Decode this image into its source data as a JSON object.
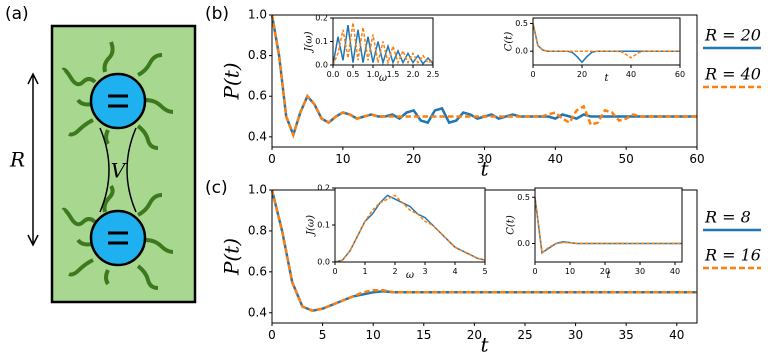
{
  "panel_a": {
    "label": "(a)",
    "distance_label": "R",
    "coupling_label": "V"
  },
  "chart_data": [
    {
      "type": "line",
      "panel_label": "(b)",
      "xlabel": "t",
      "ylabel": "P(t)",
      "x": [
        0,
        1,
        2,
        3,
        4,
        5,
        6,
        7,
        8,
        9,
        10,
        11,
        12,
        13,
        14,
        15,
        16,
        17,
        18,
        19,
        20,
        21,
        22,
        23,
        24,
        25,
        26,
        27,
        28,
        29,
        30,
        31,
        32,
        33,
        34,
        35,
        36,
        37,
        38,
        39,
        40,
        41,
        42,
        43,
        44,
        45,
        46,
        47,
        48,
        49,
        50,
        51,
        52,
        53,
        54,
        55,
        56,
        57,
        58,
        59,
        60
      ],
      "series": [
        {
          "name": "R = 20",
          "color": "#1f77b4",
          "dashed": false,
          "values": [
            1.0,
            0.8,
            0.5,
            0.41,
            0.52,
            0.6,
            0.56,
            0.49,
            0.47,
            0.5,
            0.52,
            0.51,
            0.49,
            0.5,
            0.51,
            0.5,
            0.5,
            0.51,
            0.49,
            0.52,
            0.53,
            0.48,
            0.47,
            0.53,
            0.54,
            0.47,
            0.48,
            0.52,
            0.51,
            0.49,
            0.5,
            0.51,
            0.49,
            0.5,
            0.51,
            0.5,
            0.5,
            0.5,
            0.5,
            0.5,
            0.49,
            0.51,
            0.5,
            0.49,
            0.51,
            0.5,
            0.5,
            0.5,
            0.5,
            0.5,
            0.5,
            0.5,
            0.5,
            0.5,
            0.5,
            0.5,
            0.5,
            0.5,
            0.5,
            0.5,
            0.5
          ]
        },
        {
          "name": "R = 40",
          "color": "#ff7f0e",
          "dashed": true,
          "values": [
            1.0,
            0.8,
            0.5,
            0.41,
            0.52,
            0.6,
            0.56,
            0.49,
            0.47,
            0.5,
            0.52,
            0.51,
            0.49,
            0.5,
            0.51,
            0.5,
            0.5,
            0.5,
            0.5,
            0.5,
            0.5,
            0.5,
            0.5,
            0.5,
            0.5,
            0.5,
            0.5,
            0.5,
            0.5,
            0.5,
            0.5,
            0.5,
            0.5,
            0.5,
            0.5,
            0.5,
            0.5,
            0.5,
            0.5,
            0.51,
            0.52,
            0.49,
            0.47,
            0.53,
            0.55,
            0.46,
            0.47,
            0.53,
            0.52,
            0.48,
            0.49,
            0.51,
            0.5,
            0.5,
            0.5,
            0.5,
            0.5,
            0.5,
            0.5,
            0.5,
            0.5
          ]
        }
      ],
      "xlim": [
        0,
        60
      ],
      "ylim": [
        0.35,
        1.0
      ],
      "xticks": [
        0,
        10,
        20,
        30,
        40,
        50,
        60
      ],
      "yticks": [
        {
          "value": 1.0,
          "label": "1.0"
        },
        0.8,
        0.6,
        0.4
      ],
      "legend": "outside-right"
    },
    {
      "type": "line",
      "xlabel": "ω",
      "ylabel": "J(ω)",
      "x": [
        0,
        0.125,
        0.25,
        0.375,
        0.5,
        0.625,
        0.75,
        0.875,
        1.0,
        1.125,
        1.25,
        1.375,
        1.5,
        1.625,
        1.75,
        1.875,
        2.0,
        2.125,
        2.25,
        2.375,
        2.5
      ],
      "series": [
        {
          "color": "#1f77b4",
          "dashed": false,
          "values": [
            0,
            0.12,
            0.02,
            0.17,
            0.01,
            0.15,
            0.01,
            0.12,
            0.01,
            0.1,
            0.01,
            0.08,
            0.01,
            0.06,
            0.01,
            0.05,
            0.01,
            0.04,
            0.005,
            0.03,
            0.005
          ]
        },
        {
          "color": "#ff7f0e",
          "dashed": true,
          "values": [
            0,
            0.05,
            0.15,
            0.03,
            0.18,
            0.02,
            0.16,
            0.02,
            0.13,
            0.01,
            0.1,
            0.01,
            0.08,
            0.01,
            0.06,
            0.01,
            0.05,
            0.01,
            0.04,
            0.01,
            0.02
          ]
        }
      ],
      "xlim": [
        0,
        2.5
      ],
      "ylim": [
        0,
        0.2
      ],
      "xticks": [
        {
          "value": 0.0,
          "label": "0.0"
        },
        0.5,
        {
          "value": 1.0,
          "label": "1.0"
        },
        1.5,
        {
          "value": 2.0,
          "label": "2.0"
        },
        2.5
      ],
      "yticks": [
        {
          "value": 0.0,
          "label": "0.0"
        },
        0.1,
        0.2
      ]
    },
    {
      "type": "line",
      "xlabel": "t",
      "ylabel": "C(t)",
      "x": [
        0,
        2,
        4,
        6,
        8,
        10,
        12,
        14,
        16,
        18,
        20,
        22,
        24,
        26,
        28,
        30,
        32,
        34,
        36,
        38,
        40,
        42,
        44,
        46,
        48,
        50,
        52,
        54,
        56,
        58,
        60
      ],
      "series": [
        {
          "color": "#1f77b4",
          "dashed": false,
          "values": [
            0.5,
            0.1,
            0.02,
            0,
            0,
            0,
            0,
            0,
            -0.02,
            -0.1,
            -0.2,
            -0.1,
            -0.02,
            0,
            0,
            0,
            0,
            0,
            0,
            0,
            0,
            0,
            0,
            0,
            0,
            0,
            0,
            0,
            0,
            0,
            0
          ]
        },
        {
          "color": "#ff7f0e",
          "dashed": true,
          "values": [
            0.5,
            0.1,
            0.02,
            0,
            0,
            0,
            0,
            0,
            0,
            0,
            0,
            0,
            0,
            0,
            0,
            0,
            0,
            0,
            -0.01,
            -0.06,
            -0.12,
            -0.06,
            -0.01,
            0,
            0,
            0,
            0,
            0,
            0,
            0,
            0
          ]
        }
      ],
      "xlim": [
        0,
        60
      ],
      "ylim": [
        -0.25,
        0.6
      ],
      "xticks": [
        0,
        20,
        40,
        60
      ],
      "yticks": [
        {
          "value": 0.0,
          "label": "0.0"
        },
        0.5
      ]
    },
    {
      "type": "line",
      "panel_label": "(c)",
      "xlabel": "t",
      "ylabel": "P(t)",
      "x": [
        0,
        1,
        2,
        3,
        4,
        5,
        6,
        7,
        8,
        9,
        10,
        11,
        12,
        13,
        14,
        15,
        16,
        17,
        18,
        19,
        20,
        21,
        22,
        23,
        24,
        25,
        26,
        27,
        28,
        29,
        30,
        31,
        32,
        33,
        34,
        35,
        36,
        37,
        38,
        39,
        40,
        41,
        42
      ],
      "series": [
        {
          "name": "R = 8",
          "color": "#1f77b4",
          "dashed": false,
          "values": [
            1.0,
            0.8,
            0.55,
            0.43,
            0.41,
            0.42,
            0.44,
            0.46,
            0.48,
            0.49,
            0.5,
            0.505,
            0.5,
            0.5,
            0.5,
            0.5,
            0.5,
            0.5,
            0.5,
            0.5,
            0.5,
            0.5,
            0.5,
            0.5,
            0.5,
            0.5,
            0.5,
            0.5,
            0.5,
            0.5,
            0.5,
            0.5,
            0.5,
            0.5,
            0.5,
            0.5,
            0.5,
            0.5,
            0.5,
            0.5,
            0.5,
            0.5,
            0.5
          ]
        },
        {
          "name": "R = 16",
          "color": "#ff7f0e",
          "dashed": true,
          "values": [
            1.0,
            0.8,
            0.55,
            0.43,
            0.41,
            0.42,
            0.44,
            0.46,
            0.48,
            0.5,
            0.51,
            0.51,
            0.5,
            0.5,
            0.5,
            0.5,
            0.5,
            0.5,
            0.5,
            0.5,
            0.5,
            0.5,
            0.5,
            0.5,
            0.5,
            0.5,
            0.5,
            0.5,
            0.5,
            0.5,
            0.5,
            0.5,
            0.5,
            0.5,
            0.5,
            0.5,
            0.5,
            0.5,
            0.5,
            0.5,
            0.5,
            0.5,
            0.5
          ]
        }
      ],
      "xlim": [
        0,
        42
      ],
      "ylim": [
        0.35,
        1.0
      ],
      "xticks": [
        0,
        5,
        10,
        15,
        20,
        25,
        30,
        35,
        40
      ],
      "yticks": [
        {
          "value": 1.0,
          "label": "1.0"
        },
        0.8,
        0.6,
        0.4
      ],
      "legend": "outside-right"
    },
    {
      "type": "line",
      "xlabel": "ω",
      "ylabel": "J(ω)",
      "x": [
        0,
        0.25,
        0.5,
        0.75,
        1.0,
        1.25,
        1.5,
        1.75,
        2.0,
        2.25,
        2.5,
        2.75,
        3.0,
        3.25,
        3.5,
        3.75,
        4.0,
        4.25,
        4.5,
        4.75,
        5.0
      ],
      "series": [
        {
          "color": "#1f77b4",
          "dashed": false,
          "values": [
            0,
            0.005,
            0.03,
            0.07,
            0.11,
            0.13,
            0.16,
            0.18,
            0.17,
            0.16,
            0.15,
            0.13,
            0.12,
            0.1,
            0.08,
            0.06,
            0.04,
            0.03,
            0.02,
            0.01,
            0.005
          ]
        },
        {
          "color": "#ff7f0e",
          "dashed": true,
          "values": [
            0,
            0.005,
            0.03,
            0.07,
            0.11,
            0.14,
            0.16,
            0.17,
            0.18,
            0.16,
            0.14,
            0.13,
            0.11,
            0.1,
            0.08,
            0.06,
            0.04,
            0.03,
            0.02,
            0.01,
            0.005
          ]
        }
      ],
      "xlim": [
        0,
        5
      ],
      "ylim": [
        0,
        0.2
      ],
      "xticks": [
        0,
        1,
        2,
        3,
        4,
        5
      ],
      "yticks": [
        {
          "value": 0.0,
          "label": "0.0"
        },
        0.1,
        0.2
      ]
    },
    {
      "type": "line",
      "xlabel": "t",
      "ylabel": "C(t)",
      "x": [
        0,
        2,
        4,
        6,
        8,
        10,
        12,
        14,
        16,
        18,
        20,
        22,
        24,
        26,
        28,
        30,
        32,
        34,
        36,
        38,
        40,
        42
      ],
      "series": [
        {
          "color": "#1f77b4",
          "dashed": false,
          "values": [
            0.5,
            -0.1,
            -0.05,
            0,
            0.02,
            0.01,
            0,
            0,
            0,
            0,
            0,
            0,
            0,
            0,
            0,
            0,
            0,
            0,
            0,
            0,
            0,
            0
          ]
        },
        {
          "color": "#ff7f0e",
          "dashed": true,
          "values": [
            0.5,
            -0.1,
            -0.04,
            0,
            0.01,
            0.01,
            0,
            0,
            0,
            0,
            0,
            0,
            0,
            0,
            0,
            0,
            0,
            0,
            0,
            0,
            0,
            0
          ]
        }
      ],
      "xlim": [
        0,
        42
      ],
      "ylim": [
        -0.2,
        0.6
      ],
      "xticks": [
        0,
        10,
        20,
        30,
        40
      ],
      "yticks": [
        {
          "value": 0.0,
          "label": "0.0"
        },
        0.5
      ]
    }
  ]
}
